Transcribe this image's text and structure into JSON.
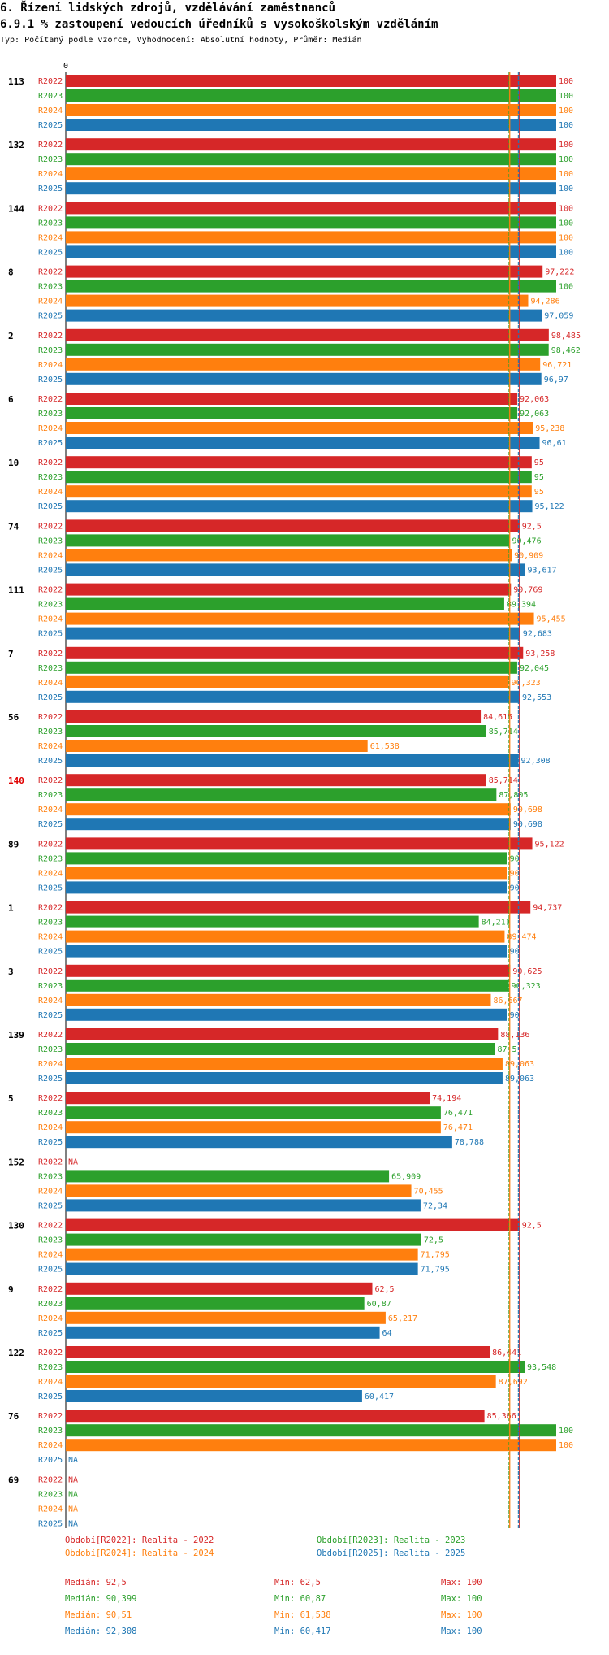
{
  "header": {
    "title": "6. Řízení lidských zdrojů, vzdělávání zaměstnanců",
    "subtitle": "6.9.1 % zastoupení vedoucích úředníků s vysokoškolským vzděláním",
    "meta": "Typ: Počítaný podle vzorce, Vyhodnocení: Absolutní hodnoty, Průměr: Medián"
  },
  "chart_data": {
    "type": "bar",
    "orientation": "horizontal",
    "axis_zero_label": "0",
    "xlim": [
      0,
      100
    ],
    "series": [
      {
        "name": "R2022",
        "color": "#d62728"
      },
      {
        "name": "R2023",
        "color": "#2ca02c"
      },
      {
        "name": "R2024",
        "color": "#ff7f0e"
      },
      {
        "name": "R2025",
        "color": "#1f77b4"
      }
    ],
    "groups": [
      {
        "id": "113",
        "highlight": false,
        "values": [
          100,
          100,
          100,
          100
        ],
        "labels": [
          "100",
          "100",
          "100",
          "100"
        ]
      },
      {
        "id": "132",
        "highlight": false,
        "values": [
          100,
          100,
          100,
          100
        ],
        "labels": [
          "100",
          "100",
          "100",
          "100"
        ]
      },
      {
        "id": "144",
        "highlight": false,
        "values": [
          100,
          100,
          100,
          100
        ],
        "labels": [
          "100",
          "100",
          "100",
          "100"
        ]
      },
      {
        "id": "8",
        "highlight": false,
        "values": [
          97.222,
          100,
          94.286,
          97.059
        ],
        "labels": [
          "97,222",
          "100",
          "94,286",
          "97,059"
        ]
      },
      {
        "id": "2",
        "highlight": false,
        "values": [
          98.485,
          98.462,
          96.721,
          96.97
        ],
        "labels": [
          "98,485",
          "98,462",
          "96,721",
          "96,97"
        ]
      },
      {
        "id": "6",
        "highlight": false,
        "values": [
          92.063,
          92.063,
          95.238,
          96.61
        ],
        "labels": [
          "92,063",
          "92,063",
          "95,238",
          "96,61"
        ]
      },
      {
        "id": "10",
        "highlight": false,
        "values": [
          95,
          95,
          95,
          95.122
        ],
        "labels": [
          "95",
          "95",
          "95",
          "95,122"
        ]
      },
      {
        "id": "74",
        "highlight": false,
        "values": [
          92.5,
          90.476,
          90.909,
          93.617
        ],
        "labels": [
          "92,5",
          "90,476",
          "90,909",
          "93,617"
        ]
      },
      {
        "id": "111",
        "highlight": false,
        "values": [
          90.769,
          89.394,
          95.455,
          92.683
        ],
        "labels": [
          "90,769",
          "89,394",
          "95,455",
          "92,683"
        ]
      },
      {
        "id": "7",
        "highlight": false,
        "values": [
          93.258,
          92.045,
          90.323,
          92.553
        ],
        "labels": [
          "93,258",
          "92,045",
          "90,323",
          "92,553"
        ]
      },
      {
        "id": "56",
        "highlight": false,
        "values": [
          84.615,
          85.714,
          61.538,
          92.308
        ],
        "labels": [
          "84,615",
          "85,714",
          "61,538",
          "92,308"
        ]
      },
      {
        "id": "140",
        "highlight": true,
        "values": [
          85.714,
          87.805,
          90.698,
          90.698
        ],
        "labels": [
          "85,714",
          "87,805",
          "90,698",
          "90,698"
        ]
      },
      {
        "id": "89",
        "highlight": false,
        "values": [
          95.122,
          90,
          90,
          90
        ],
        "labels": [
          "95,122",
          "90",
          "90",
          "90"
        ]
      },
      {
        "id": "1",
        "highlight": false,
        "values": [
          94.737,
          84.211,
          89.474,
          90
        ],
        "labels": [
          "94,737",
          "84,211",
          "89,474",
          "90"
        ]
      },
      {
        "id": "3",
        "highlight": false,
        "values": [
          90.625,
          90.323,
          86.667,
          90
        ],
        "labels": [
          "90,625",
          "90,323",
          "86,667",
          "90"
        ]
      },
      {
        "id": "139",
        "highlight": false,
        "values": [
          88.136,
          87.5,
          89.063,
          89.063
        ],
        "labels": [
          "88,136",
          "87,5",
          "89,063",
          "89,063"
        ]
      },
      {
        "id": "5",
        "highlight": false,
        "values": [
          74.194,
          76.471,
          76.471,
          78.788
        ],
        "labels": [
          "74,194",
          "76,471",
          "76,471",
          "78,788"
        ]
      },
      {
        "id": "152",
        "highlight": false,
        "values": [
          null,
          65.909,
          70.455,
          72.34
        ],
        "labels": [
          "NA",
          "65,909",
          "70,455",
          "72,34"
        ]
      },
      {
        "id": "130",
        "highlight": false,
        "values": [
          92.5,
          72.5,
          71.795,
          71.795
        ],
        "labels": [
          "92,5",
          "72,5",
          "71,795",
          "71,795"
        ]
      },
      {
        "id": "9",
        "highlight": false,
        "values": [
          62.5,
          60.87,
          65.217,
          64
        ],
        "labels": [
          "62,5",
          "60,87",
          "65,217",
          "64"
        ]
      },
      {
        "id": "122",
        "highlight": false,
        "values": [
          86.441,
          93.548,
          87.692,
          60.417
        ],
        "labels": [
          "86,441",
          "93,548",
          "87,692",
          "60,417"
        ]
      },
      {
        "id": "76",
        "highlight": false,
        "values": [
          85.366,
          100,
          100,
          null
        ],
        "labels": [
          "85,366",
          "100",
          "100",
          "NA"
        ]
      },
      {
        "id": "69",
        "highlight": false,
        "values": [
          null,
          null,
          null,
          null
        ],
        "labels": [
          "NA",
          "NA",
          "NA",
          "NA"
        ]
      }
    ],
    "median_lines": [
      92.5,
      90.399,
      90.51,
      92.308
    ],
    "legend": [
      "Období[R2022]: Realita - 2022",
      "Období[R2023]: Realita - 2023",
      "Období[R2024]: Realita - 2024",
      "Období[R2025]: Realita - 2025"
    ],
    "stats": [
      {
        "median": "Medián: 92,5",
        "min": "Min: 62,5",
        "max": "Max: 100"
      },
      {
        "median": "Medián: 90,399",
        "min": "Min: 60,87",
        "max": "Max: 100"
      },
      {
        "median": "Medián: 90,51",
        "min": "Min: 61,538",
        "max": "Max: 100"
      },
      {
        "median": "Medián: 92,308",
        "min": "Min: 60,417",
        "max": "Max: 100"
      }
    ]
  }
}
